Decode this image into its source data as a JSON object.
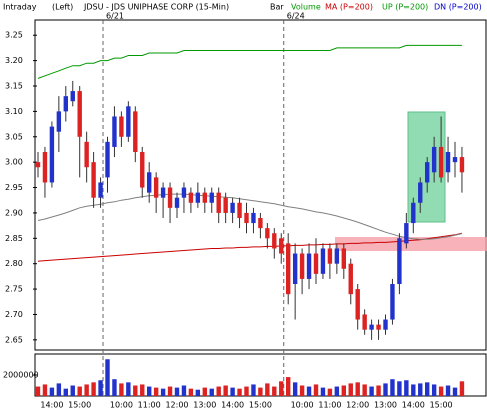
{
  "chart_data": {
    "type": "candlestick",
    "period": "Intraday",
    "axis_side": "(Left)",
    "title": "JDSU - JDS UNIPHASE CORP (15-Min)",
    "bar_label": "Bar",
    "volume_name": "Volume",
    "up_color": "#2233cc",
    "down_color": "#dd2222",
    "days": [
      {
        "date": null,
        "categories": [
          null,
          null,
          "14:00",
          null,
          null,
          null,
          "15:00",
          null,
          null,
          null
        ]
      },
      {
        "date": "6/21",
        "categories": [
          null,
          null,
          "10:00",
          null,
          null,
          null,
          "11:00",
          null,
          null,
          null,
          "12:00",
          null,
          null,
          null,
          "13:00",
          null,
          null,
          null,
          "14:00",
          null,
          null,
          null,
          "15:00",
          null,
          null,
          null
        ]
      },
      {
        "date": "6/24",
        "categories": [
          null,
          null,
          "10:00",
          null,
          null,
          null,
          "11:00",
          null,
          null,
          null,
          "12:00",
          null,
          null,
          null,
          "13:00",
          null,
          null,
          null,
          "14:00",
          null,
          null,
          null,
          "15:00",
          null,
          null,
          null
        ]
      }
    ],
    "open": [
      3.0,
      3.02,
      2.96,
      3.06,
      3.1,
      3.12,
      3.14,
      3.04,
      3.0,
      2.93,
      2.97,
      3.03,
      3.09,
      3.05,
      3.1,
      3.02,
      2.94,
      2.97,
      2.93,
      2.95,
      2.91,
      2.93,
      2.94,
      2.92,
      2.94,
      2.92,
      2.94,
      2.93,
      2.9,
      2.92,
      2.9,
      2.88,
      2.89,
      2.87,
      2.86,
      2.85,
      2.84,
      2.76,
      2.82,
      2.77,
      2.82,
      2.78,
      2.83,
      2.8,
      2.83,
      2.8,
      2.75,
      2.7,
      2.67,
      2.68,
      2.67,
      2.69,
      2.76,
      2.84,
      2.88,
      2.92,
      2.96,
      2.98,
      3.03,
      2.98,
      3.0,
      3.01
    ],
    "high": [
      3.02,
      3.03,
      3.08,
      3.13,
      3.15,
      3.16,
      3.15,
      3.06,
      3.02,
      2.97,
      3.05,
      3.11,
      3.1,
      3.12,
      3.11,
      3.03,
      3.0,
      2.98,
      2.96,
      2.96,
      2.94,
      2.96,
      2.95,
      2.96,
      2.95,
      2.95,
      2.95,
      2.94,
      2.93,
      2.93,
      2.92,
      2.91,
      2.9,
      2.88,
      2.87,
      2.86,
      2.86,
      2.84,
      2.83,
      2.84,
      2.85,
      2.84,
      2.84,
      2.84,
      2.84,
      2.81,
      2.76,
      2.71,
      2.69,
      2.69,
      2.7,
      2.77,
      2.86,
      2.9,
      2.93,
      2.97,
      3.01,
      3.05,
      3.09,
      3.05,
      3.04,
      3.03
    ],
    "low": [
      2.97,
      2.93,
      2.95,
      3.02,
      3.08,
      3.11,
      2.97,
      2.96,
      2.91,
      2.91,
      2.94,
      3.01,
      3.03,
      3.04,
      3.0,
      2.93,
      2.92,
      2.9,
      2.89,
      2.88,
      2.89,
      2.9,
      2.9,
      2.91,
      2.9,
      2.9,
      2.88,
      2.88,
      2.88,
      2.87,
      2.86,
      2.86,
      2.85,
      2.83,
      2.81,
      2.8,
      2.72,
      2.69,
      2.74,
      2.75,
      2.76,
      2.77,
      2.77,
      2.78,
      2.77,
      2.72,
      2.67,
      2.66,
      2.65,
      2.65,
      2.66,
      2.68,
      2.74,
      2.83,
      2.86,
      2.9,
      2.94,
      2.96,
      2.96,
      2.96,
      2.97,
      2.94
    ],
    "close": [
      2.99,
      2.96,
      3.07,
      3.1,
      3.13,
      3.14,
      3.05,
      2.99,
      2.93,
      2.96,
      3.04,
      3.09,
      3.05,
      3.11,
      3.02,
      2.95,
      2.98,
      2.93,
      2.95,
      2.91,
      2.93,
      2.95,
      2.92,
      2.94,
      2.92,
      2.94,
      2.9,
      2.9,
      2.92,
      2.89,
      2.88,
      2.9,
      2.87,
      2.85,
      2.83,
      2.82,
      2.74,
      2.82,
      2.77,
      2.82,
      2.78,
      2.83,
      2.8,
      2.83,
      2.79,
      2.74,
      2.69,
      2.67,
      2.68,
      2.67,
      2.69,
      2.76,
      2.85,
      2.88,
      2.92,
      2.96,
      3.0,
      3.03,
      2.97,
      3.02,
      3.01,
      2.98
    ],
    "volume": [
      900000,
      1100000,
      800000,
      1200000,
      700000,
      1000000,
      900000,
      1100000,
      1300000,
      1500000,
      3500000,
      1600000,
      1200000,
      1300000,
      1000000,
      1100000,
      900000,
      800000,
      700000,
      900000,
      800000,
      1000000,
      700000,
      600000,
      800000,
      700000,
      900000,
      1000000,
      800000,
      700000,
      900000,
      1100000,
      800000,
      1200000,
      900000,
      1400000,
      1800000,
      1300000,
      1000000,
      900000,
      1100000,
      800000,
      700000,
      900000,
      1000000,
      1200000,
      1300000,
      1100000,
      900000,
      1000000,
      1200000,
      1600000,
      1400000,
      1500000,
      1100000,
      1200000,
      1300000,
      1100000,
      900000,
      1000000,
      800000,
      1400000
    ],
    "series": [
      {
        "name": "MA (P=200)",
        "color": "#cc0000",
        "values": [
          2.805,
          2.806,
          2.807,
          2.808,
          2.809,
          2.81,
          2.811,
          2.812,
          2.813,
          2.814,
          2.815,
          2.816,
          2.817,
          2.818,
          2.819,
          2.82,
          2.821,
          2.822,
          2.823,
          2.824,
          2.825,
          2.826,
          2.827,
          2.828,
          2.829,
          2.83,
          2.83,
          2.831,
          2.831,
          2.832,
          2.832,
          2.833,
          2.833,
          2.834,
          2.834,
          2.835,
          2.835,
          2.836,
          2.836,
          2.837,
          2.837,
          2.838,
          2.838,
          2.839,
          2.839,
          2.84,
          2.84,
          2.841,
          2.841,
          2.842,
          2.842,
          2.843,
          2.844,
          2.845,
          2.846,
          2.847,
          2.849,
          2.851,
          2.853,
          2.855,
          2.857,
          2.86
        ]
      },
      {
        "name": "UP (P=200)",
        "color": "#009900",
        "values": [
          3.165,
          3.17,
          3.175,
          3.18,
          3.185,
          3.19,
          3.19,
          3.195,
          3.195,
          3.2,
          3.2,
          3.205,
          3.205,
          3.21,
          3.21,
          3.21,
          3.215,
          3.215,
          3.215,
          3.215,
          3.215,
          3.22,
          3.22,
          3.22,
          3.22,
          3.22,
          3.22,
          3.22,
          3.22,
          3.22,
          3.22,
          3.22,
          3.22,
          3.22,
          3.22,
          3.22,
          3.22,
          3.22,
          3.22,
          3.22,
          3.22,
          3.22,
          3.22,
          3.225,
          3.225,
          3.225,
          3.225,
          3.225,
          3.225,
          3.225,
          3.225,
          3.225,
          3.225,
          3.23,
          3.23,
          3.23,
          3.23,
          3.23,
          3.23,
          3.23,
          3.23,
          3.23
        ]
      },
      {
        "name": "DN (P=200)",
        "color": "#0000cc",
        "values": [
          null,
          null,
          null,
          null,
          null,
          null,
          null,
          null,
          null,
          null,
          null,
          null,
          null,
          null,
          null,
          null,
          null,
          null,
          null,
          null,
          null,
          null,
          null,
          null,
          null,
          null,
          null,
          null,
          null,
          null,
          null,
          null,
          null,
          null,
          null,
          null,
          null,
          null,
          null,
          null,
          null,
          null,
          null,
          null,
          null,
          null,
          null,
          null,
          null,
          null,
          null,
          null,
          null,
          null,
          null,
          null,
          null,
          null,
          null,
          null,
          null,
          null
        ]
      },
      {
        "color": "#808080",
        "values": [
          2.885,
          2.888,
          2.892,
          2.896,
          2.9,
          2.905,
          2.91,
          2.913,
          2.915,
          2.917,
          2.92,
          2.922,
          2.925,
          2.927,
          2.93,
          2.932,
          2.934,
          2.935,
          2.936,
          2.937,
          2.937,
          2.937,
          2.936,
          2.935,
          2.934,
          2.933,
          2.932,
          2.931,
          2.93,
          2.928,
          2.926,
          2.924,
          2.922,
          2.92,
          2.918,
          2.915,
          2.912,
          2.91,
          2.908,
          2.905,
          2.902,
          2.9,
          2.897,
          2.894,
          2.89,
          2.886,
          2.882,
          2.877,
          2.872,
          2.867,
          2.862,
          2.858,
          2.854,
          2.851,
          2.849,
          2.848,
          2.848,
          2.849,
          2.851,
          2.853,
          2.856,
          2.859
        ]
      }
    ],
    "ylim": [
      2.63,
      3.28
    ],
    "yticks": [
      3.25,
      {
        "value": 3.2,
        "label": "3.20"
      },
      3.15,
      {
        "value": 3.1,
        "label": "3.10"
      },
      3.05,
      {
        "value": 3.0,
        "label": "3.00"
      },
      2.95,
      {
        "value": 2.9,
        "label": "2.90"
      },
      2.85,
      {
        "value": 2.8,
        "label": "2.80"
      },
      2.75,
      {
        "value": 2.7,
        "label": "2.70"
      },
      2.65
    ],
    "vlim": [
      0,
      4000000
    ],
    "vticks": [
      2000000
    ]
  }
}
